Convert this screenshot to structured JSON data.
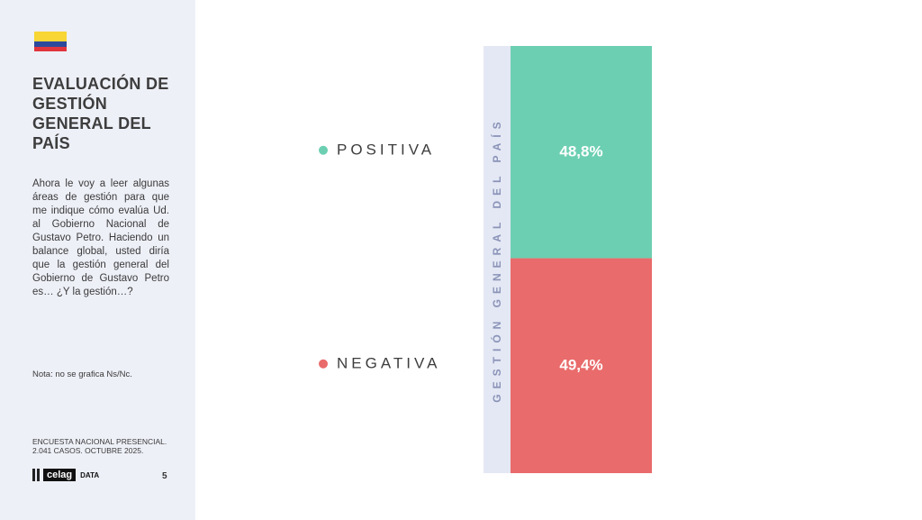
{
  "sidebar": {
    "title": "EVALUACIÓN DE GESTIÓN GENERAL DEL PAÍS",
    "question": "Ahora le voy a leer algunas áreas de gestión para que me indique cómo evalúa Ud. al Gobierno Nacional de Gustavo Petro. Haciendo un balance global, usted diría que la gestión general del Gobierno de Gustavo Petro es… ¿Y la gestión…?",
    "note": "Nota: no se grafica Ns/Nc.",
    "source": "ENCUESTA NACIONAL PRESENCIAL. 2.041 CASOS. OCTUBRE 2025.",
    "logo": "celag",
    "logo_suffix": "DATA",
    "page": "5"
  },
  "chart_data": {
    "type": "stacked-bar",
    "categories": [
      "GESTIÓN GENERAL DEL PAÍS"
    ],
    "series": [
      {
        "name": "POSITIVA",
        "color": "#6dcfb2",
        "values": [
          48.8
        ],
        "value_labels": [
          "48,8%"
        ]
      },
      {
        "name": "NEGATIVA",
        "color": "#e96b6b",
        "values": [
          49.4
        ],
        "value_labels": [
          "49,4%"
        ]
      }
    ]
  }
}
